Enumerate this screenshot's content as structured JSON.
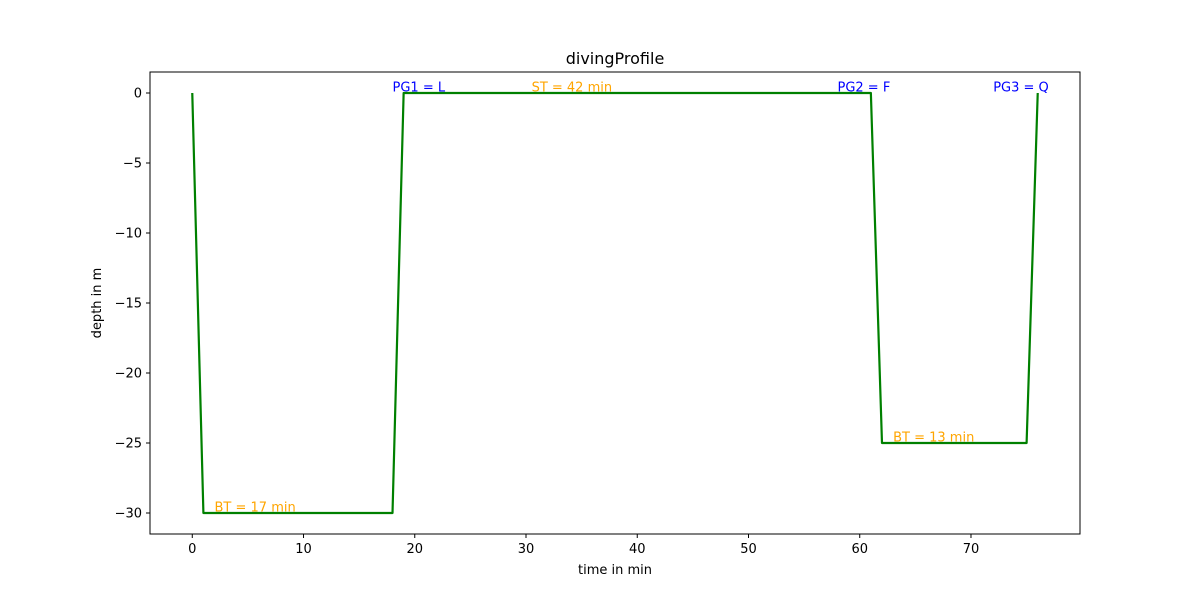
{
  "chart_data": {
    "type": "line",
    "title": "divingProfile",
    "xlabel": "time in min",
    "ylabel": "depth in m",
    "xlim": [
      -3.8,
      79.8
    ],
    "ylim": [
      -31.5,
      1.5
    ],
    "xticks": [
      0,
      10,
      20,
      30,
      40,
      50,
      60,
      70
    ],
    "yticks": [
      0,
      -5,
      -10,
      -15,
      -20,
      -25,
      -30
    ],
    "grid": false,
    "series": [
      {
        "color": "#008000",
        "x": [
          0,
          1,
          18,
          19,
          61,
          62,
          75,
          76
        ],
        "y": [
          0,
          -30,
          -30,
          0,
          0,
          -25,
          -25,
          0
        ]
      }
    ],
    "annotations": [
      {
        "text": "PG1 = L",
        "x": 18,
        "y": 0.1,
        "color": "#0000ff"
      },
      {
        "text": "ST = 42 min",
        "x": 30.5,
        "y": 0.1,
        "color": "#ffa500"
      },
      {
        "text": "PG2 = F",
        "x": 58,
        "y": 0.1,
        "color": "#0000ff"
      },
      {
        "text": "PG3 = Q",
        "x": 72,
        "y": 0.1,
        "color": "#0000ff"
      },
      {
        "text": "BT = 17 min",
        "x": 2,
        "y": -29.9,
        "color": "#ffa500"
      },
      {
        "text": "BT = 13 min",
        "x": 63,
        "y": -24.9,
        "color": "#ffa500"
      }
    ]
  }
}
